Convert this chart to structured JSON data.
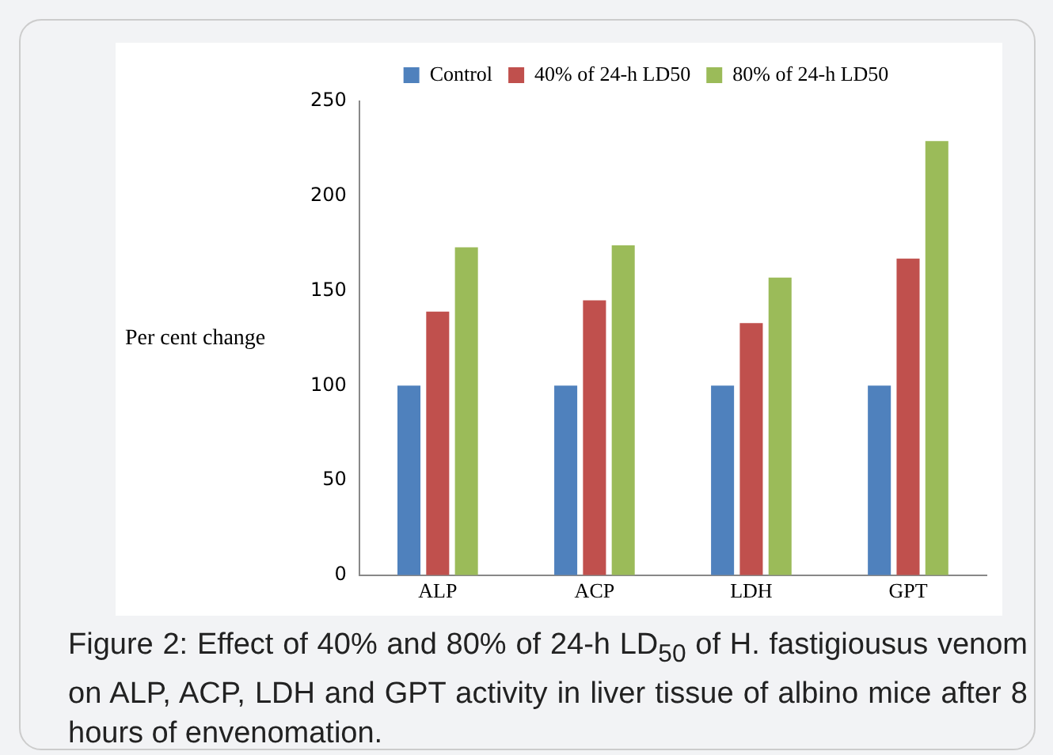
{
  "chart_data": {
    "type": "bar",
    "categories": [
      "ALP",
      "ACP",
      "LDH",
      "GPT"
    ],
    "series": [
      {
        "name": "Control",
        "color": "#4f81bd",
        "values": [
          100,
          100,
          100,
          100
        ]
      },
      {
        "name": "40% of 24-h LD50",
        "color": "#c0504d",
        "values": [
          139,
          145,
          133,
          167
        ]
      },
      {
        "name": "80% of 24-h LD50",
        "color": "#9bbb59",
        "values": [
          173,
          174,
          157,
          229
        ]
      }
    ],
    "ylabel": "Per cent change",
    "ylim": [
      0,
      250
    ],
    "yticks": [
      0,
      50,
      100,
      150,
      200,
      250
    ],
    "grid": false,
    "legend": "top",
    "annotations": [
      "Figure 2: Effect of 40% and 80% of 24-h LD$_{50}$ of H. fastigiousus venom on ALP, ACP, LDH and GPT activity in liver tissue of albino mice after 8 hours of envenomation."
    ]
  }
}
